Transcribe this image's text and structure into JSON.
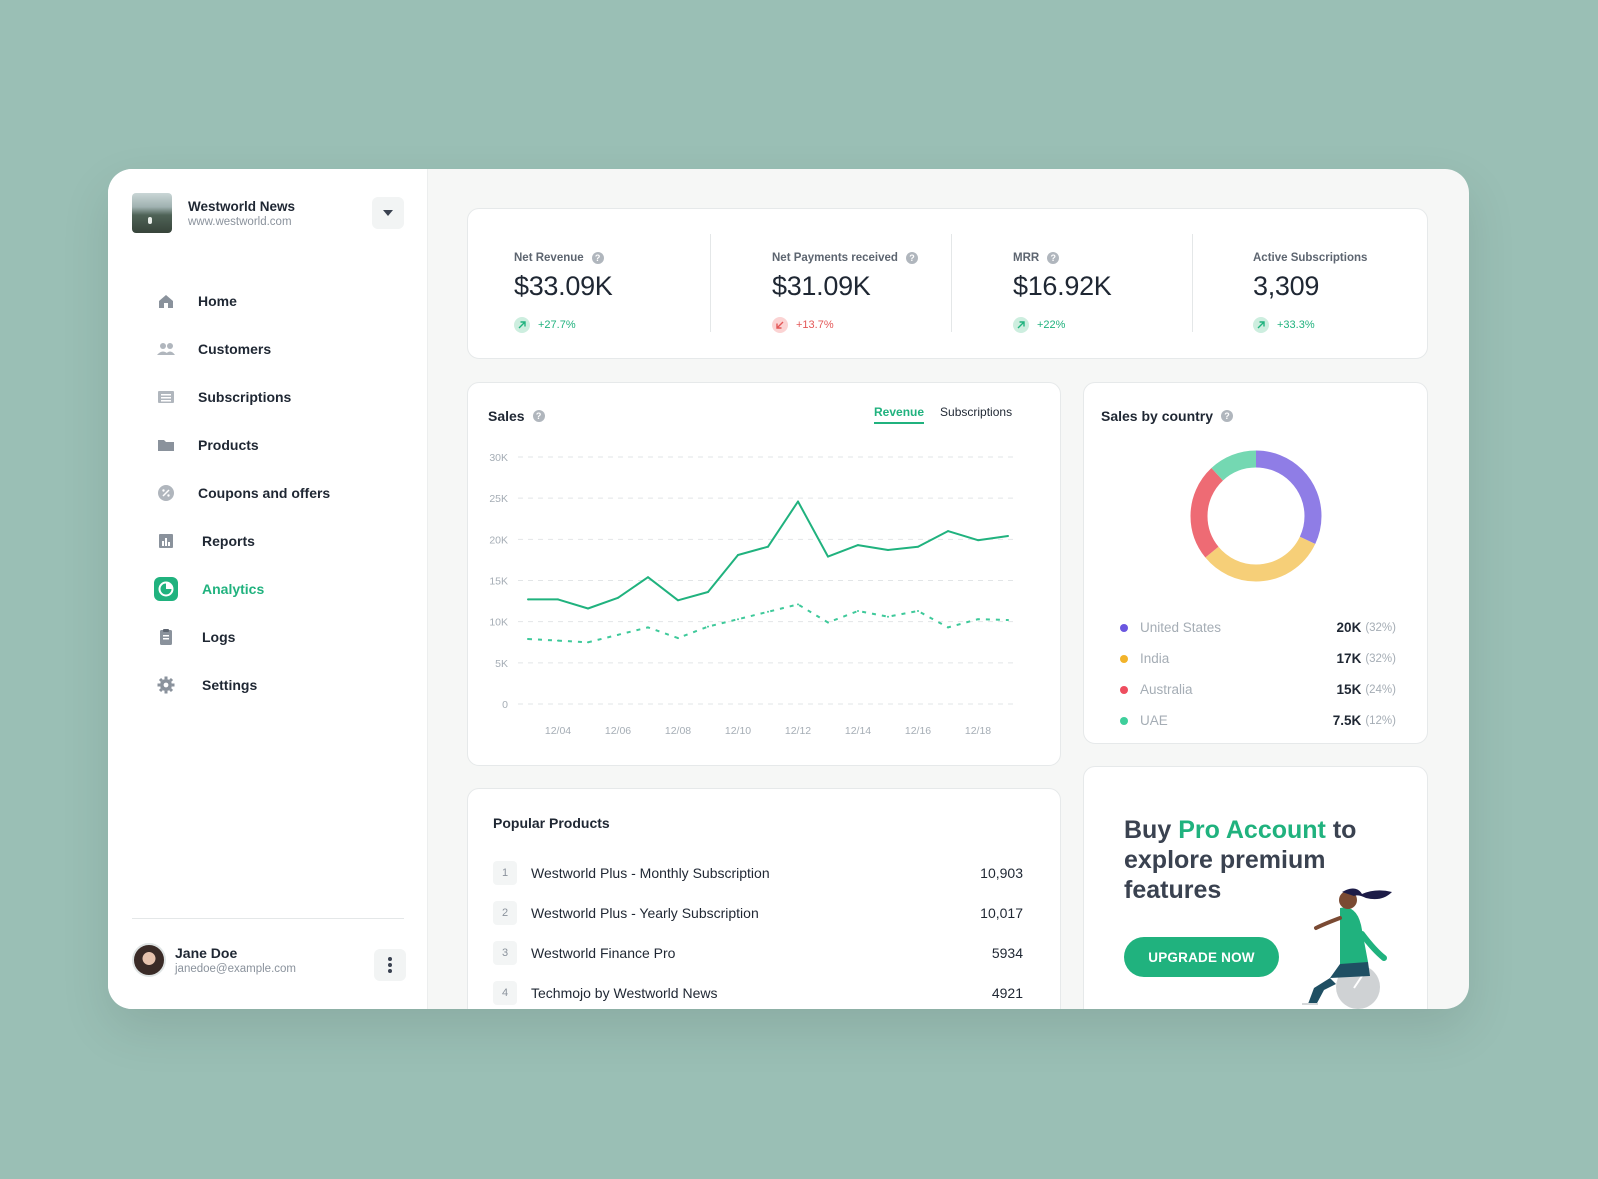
{
  "org": {
    "name": "Westworld News",
    "url": "www.westworld.com"
  },
  "nav": [
    {
      "label": "Home",
      "icon": "home-icon"
    },
    {
      "label": "Customers",
      "icon": "users-icon"
    },
    {
      "label": "Subscriptions",
      "icon": "list-icon"
    },
    {
      "label": "Products",
      "icon": "folder-icon"
    },
    {
      "label": "Coupons and offers",
      "icon": "percent-badge-icon"
    },
    {
      "label": "Reports",
      "icon": "bar-chart-icon"
    },
    {
      "label": "Analytics",
      "icon": "pie-chart-icon",
      "active": true
    },
    {
      "label": "Logs",
      "icon": "clipboard-icon"
    },
    {
      "label": "Settings",
      "icon": "gear-icon"
    }
  ],
  "user": {
    "name": "Jane Doe",
    "email": "janedoe@example.com"
  },
  "kpis": [
    {
      "label": "Net Revenue",
      "value": "$33.09K",
      "delta": "+27.7%",
      "trend": "up",
      "help": true
    },
    {
      "label": "Net Payments received",
      "value": "$31.09K",
      "delta": "+13.7%",
      "trend": "down",
      "help": true
    },
    {
      "label": "MRR",
      "value": "$16.92K",
      "delta": "+22%",
      "trend": "up",
      "help": true
    },
    {
      "label": "Active Subscriptions",
      "value": "3,309",
      "delta": "+33.3%",
      "trend": "up",
      "help": false
    }
  ],
  "sales": {
    "title": "Sales",
    "tabs": [
      {
        "label": "Revenue",
        "active": true
      },
      {
        "label": "Subscriptions",
        "active": false
      }
    ]
  },
  "chart_data": {
    "type": "line",
    "title": "Sales",
    "xlabel": "",
    "ylabel": "",
    "ylim": [
      0,
      30000
    ],
    "yticks": [
      "30K",
      "25K",
      "20K",
      "15K",
      "10K",
      "5K",
      "0"
    ],
    "ytick_values": [
      30000,
      25000,
      20000,
      15000,
      10000,
      5000,
      0
    ],
    "xticks": [
      "12/04",
      "12/06",
      "12/08",
      "12/10",
      "12/12",
      "12/14",
      "12/16",
      "12/18"
    ],
    "x": [
      "12/03",
      "12/04",
      "12/05",
      "12/06",
      "12/07",
      "12/08",
      "12/09",
      "12/10",
      "12/11",
      "12/12",
      "12/13",
      "12/14",
      "12/15",
      "12/16",
      "12/17",
      "12/18",
      "12/19"
    ],
    "grid": true,
    "series": [
      {
        "style": "solid",
        "color": "#20b27e",
        "values": [
          12700,
          12700,
          11600,
          12900,
          15400,
          12600,
          13600,
          18100,
          19100,
          24600,
          17900,
          19300,
          18700,
          19100,
          21000,
          19900,
          20400
        ]
      },
      {
        "style": "dashed",
        "color": "#3ec99a",
        "values": [
          7900,
          7700,
          7500,
          8400,
          9300,
          8000,
          9400,
          10300,
          11200,
          12100,
          9900,
          11300,
          10600,
          11300,
          9300,
          10300,
          10200
        ]
      }
    ]
  },
  "country": {
    "title": "Sales by country",
    "rows": [
      {
        "name": "United States",
        "value": "20K",
        "pct": "(32%)",
        "share": 32,
        "color": "#8f7de6"
      },
      {
        "name": "India",
        "value": "17K",
        "pct": "(32%)",
        "share": 32,
        "color": "#f6cf78"
      },
      {
        "name": "Australia",
        "value": "15K",
        "pct": "(24%)",
        "share": 24,
        "color": "#ee6b74"
      },
      {
        "name": "UAE",
        "value": "7.5K",
        "pct": "(12%)",
        "share": 12,
        "color": "#74d8b2"
      }
    ],
    "legend_dot_colors": [
      "#6a56e0",
      "#f2b32a",
      "#ee4d5f",
      "#3ecf9b"
    ]
  },
  "popular": {
    "title": "Popular Products",
    "items": [
      {
        "rank": "1",
        "name": "Westworld Plus - Monthly Subscription",
        "count": "10,903"
      },
      {
        "rank": "2",
        "name": "Westworld Plus - Yearly Subscription",
        "count": "10,017"
      },
      {
        "rank": "3",
        "name": "Westworld Finance Pro",
        "count": "5934"
      },
      {
        "rank": "4",
        "name": "Techmojo by Westworld News",
        "count": "4921"
      }
    ]
  },
  "promo": {
    "prefix": "Buy ",
    "accent": "Pro Account",
    "suffix": " to explore premium features",
    "cta": "UPGRADE NOW"
  },
  "colors": {
    "accent": "#20b27e",
    "negative": "#e35757",
    "background": "#9abfb5"
  }
}
